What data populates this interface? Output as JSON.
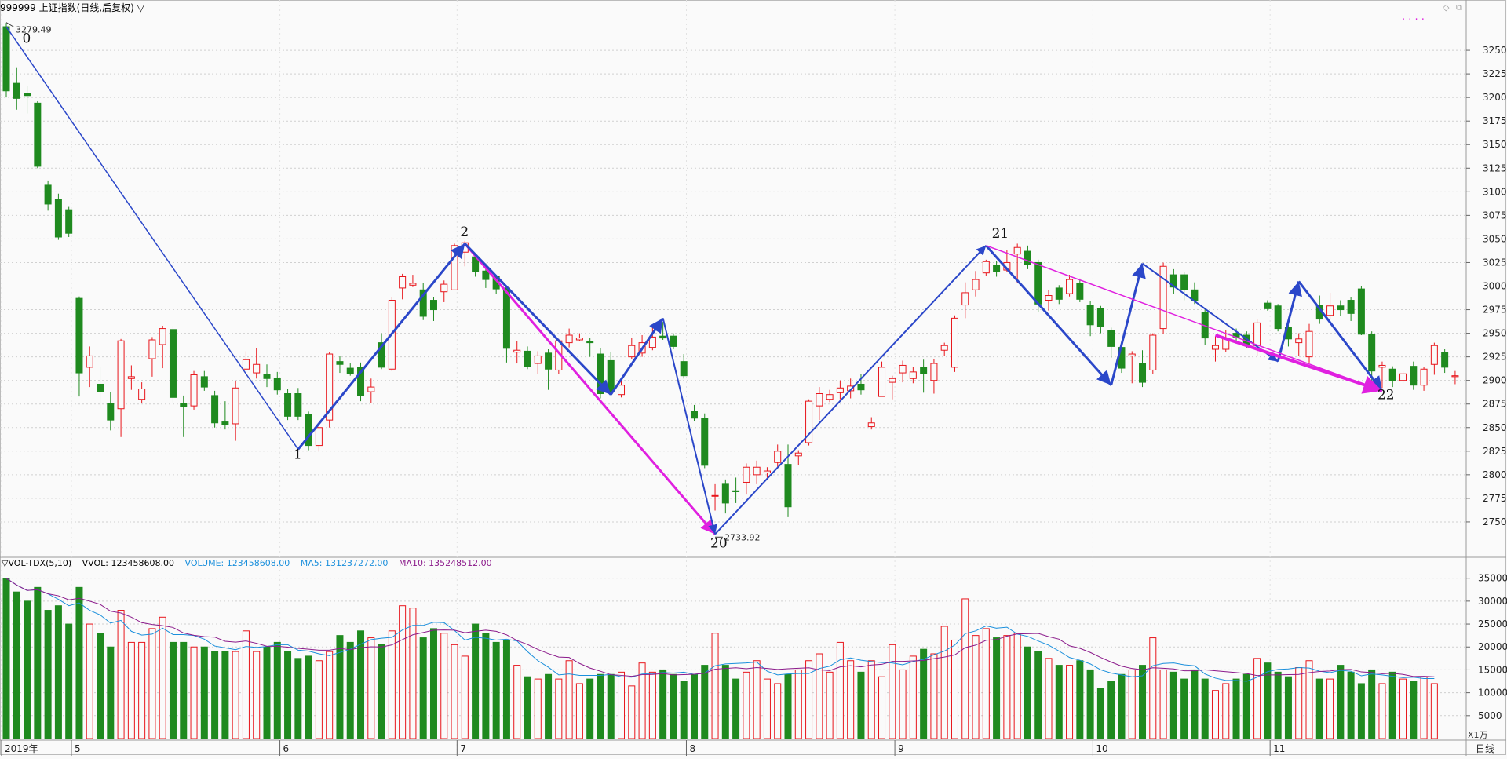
{
  "header": {
    "title": "999999 上证指数(日线,后复权) ▽",
    "legend_dots": "· · · ·"
  },
  "volume_panel": {
    "label": "▽VOL-TDX(5,10)",
    "vvol": "VVOL: 123458608.00",
    "volume": "VOLUME: 123458608.00",
    "ma5": "MA5: 131237272.00",
    "ma10": "MA10: 135248512.00",
    "unit": "X1万"
  },
  "colors": {
    "up": "#e8151b",
    "down": "#1f8a1f",
    "wave": "#2b47c9",
    "magenta": "#e020e0",
    "ma5": "#1a8fdc",
    "ma10": "#8b1a8b",
    "grid": "#d0d0d0",
    "bg": "#fafafa"
  },
  "chart_data": {
    "type": "candlestick",
    "price_axis": {
      "ticks": [
        2750,
        2775,
        2800,
        2825,
        2850,
        2875,
        2900,
        2925,
        2950,
        2975,
        3000,
        3025,
        3050,
        3075,
        3100,
        3125,
        3150,
        3175,
        3200,
        3225,
        3250
      ],
      "range": [
        2715,
        3290
      ]
    },
    "volume_axis": {
      "ticks": [
        5000,
        10000,
        15000,
        20000,
        25000,
        30000,
        35000
      ],
      "range": [
        0,
        37000
      ]
    },
    "x_axis": {
      "labels": [
        "2019年",
        "5",
        "6",
        "7",
        "8",
        "9",
        "10",
        "11"
      ],
      "label_index": [
        0,
        7,
        27,
        44,
        66,
        86,
        105,
        122
      ],
      "corner_label": "日线"
    },
    "annotations": {
      "high_label": "3279.49",
      "low_label": "2733.92",
      "high_index": 0,
      "low_index": 68
    },
    "wave_labels": [
      {
        "text": "0",
        "index": 2,
        "price": 3258
      },
      {
        "text": "1",
        "index": 28,
        "price": 2817
      },
      {
        "text": "2",
        "index": 44,
        "price": 3053
      },
      {
        "text": "20",
        "index": 68,
        "price": 2723
      },
      {
        "text": "21",
        "index": 95,
        "price": 3051
      },
      {
        "text": "22",
        "index": 132,
        "price": 2880
      }
    ],
    "wave_lines": [
      {
        "from": [
          0,
          3275
        ],
        "to": [
          28,
          2827
        ],
        "color": "wave",
        "width": 1.5
      },
      {
        "from": [
          28,
          2827
        ],
        "to": [
          44,
          3045
        ],
        "color": "wave",
        "width": 3,
        "arrow": true
      },
      {
        "from": [
          44,
          3045
        ],
        "to": [
          68,
          2737
        ],
        "color": "magenta",
        "width": 3,
        "arrow": true
      },
      {
        "from": [
          44,
          3045
        ],
        "to": [
          58,
          2885
        ],
        "color": "wave",
        "width": 3,
        "arrow": true
      },
      {
        "from": [
          58,
          2885
        ],
        "to": [
          63,
          2966
        ],
        "color": "wave",
        "width": 3,
        "arrow": true
      },
      {
        "from": [
          63,
          2966
        ],
        "to": [
          68,
          2737
        ],
        "color": "wave",
        "width": 2,
        "arrow": true
      },
      {
        "from": [
          68,
          2737
        ],
        "to": [
          94,
          3043
        ],
        "color": "wave",
        "width": 2,
        "arrow": true
      },
      {
        "from": [
          94,
          3043
        ],
        "to": [
          106,
          2895
        ],
        "color": "wave",
        "width": 3,
        "arrow": true
      },
      {
        "from": [
          106,
          2895
        ],
        "to": [
          109,
          3024
        ],
        "color": "wave",
        "width": 3,
        "arrow": true
      },
      {
        "from": [
          109,
          3024
        ],
        "to": [
          122,
          2920
        ],
        "color": "wave",
        "width": 2,
        "arrow": true
      },
      {
        "from": [
          122,
          2920
        ],
        "to": [
          124,
          3005
        ],
        "color": "wave",
        "width": 3,
        "arrow": true
      },
      {
        "from": [
          124,
          3005
        ],
        "to": [
          132,
          2889
        ],
        "color": "wave",
        "width": 3,
        "arrow": true
      },
      {
        "from": [
          94,
          3043
        ],
        "to": [
          132,
          2889
        ],
        "color": "magenta",
        "width": 1.5
      },
      {
        "from": [
          116,
          2948
        ],
        "to": [
          132,
          2889
        ],
        "color": "magenta",
        "width": 4,
        "arrow": true
      }
    ],
    "candles": [
      [
        3275,
        3207,
        3279,
        3200
      ],
      [
        3215,
        3199,
        3232,
        3187
      ],
      [
        3204,
        3202,
        3212,
        3183
      ],
      [
        3194,
        3127,
        3196,
        3125
      ],
      [
        3107,
        3087,
        3112,
        3080
      ],
      [
        3092,
        3052,
        3098,
        3049
      ],
      [
        3081,
        3056,
        3084,
        3052
      ],
      [
        2987,
        2908,
        2989,
        2883
      ],
      [
        2914,
        2926,
        2936,
        2893
      ],
      [
        2896,
        2888,
        2914,
        2870
      ],
      [
        2876,
        2858,
        2888,
        2847
      ],
      [
        2870,
        2942,
        2944,
        2840
      ],
      [
        2902,
        2904,
        2916,
        2890
      ],
      [
        2880,
        2891,
        2898,
        2876
      ],
      [
        2923,
        2943,
        2946,
        2904
      ],
      [
        2938,
        2955,
        2958,
        2913
      ],
      [
        2954,
        2882,
        2958,
        2876
      ],
      [
        2876,
        2872,
        2884,
        2840
      ],
      [
        2873,
        2906,
        2910,
        2869
      ],
      [
        2904,
        2893,
        2910,
        2889
      ],
      [
        2884,
        2855,
        2889,
        2850
      ],
      [
        2856,
        2853,
        2878,
        2848
      ],
      [
        2854,
        2892,
        2899,
        2836
      ],
      [
        2912,
        2922,
        2931,
        2910
      ],
      [
        2908,
        2917,
        2934,
        2902
      ],
      [
        2906,
        2902,
        2917,
        2893
      ],
      [
        2902,
        2890,
        2909,
        2885
      ],
      [
        2886,
        2862,
        2891,
        2858
      ],
      [
        2886,
        2862,
        2892,
        2858
      ],
      [
        2864,
        2831,
        2867,
        2826
      ],
      [
        2831,
        2850,
        2855,
        2825
      ],
      [
        2858,
        2928,
        2930,
        2850
      ],
      [
        2920,
        2917,
        2926,
        2908
      ],
      [
        2913,
        2907,
        2918,
        2905
      ],
      [
        2914,
        2884,
        2919,
        2878
      ],
      [
        2888,
        2893,
        2902,
        2876
      ],
      [
        2940,
        2914,
        2950,
        2912
      ],
      [
        2912,
        2985,
        2988,
        2910
      ],
      [
        2998,
        3010,
        3013,
        2986
      ],
      [
        3001,
        3003,
        3012,
        2999
      ],
      [
        2996,
        2968,
        3003,
        2964
      ],
      [
        2985,
        2975,
        2988,
        2963
      ],
      [
        2994,
        3002,
        3006,
        2983
      ],
      [
        2996,
        3043,
        3045,
        3019
      ],
      [
        3036,
        3046,
        3048,
        3021
      ],
      [
        3031,
        3015,
        3034,
        3010
      ],
      [
        3016,
        3007,
        3024,
        2998
      ],
      [
        3010,
        2997,
        3012,
        2992
      ],
      [
        2998,
        2934,
        3000,
        2919
      ],
      [
        2930,
        2932,
        2942,
        2918
      ],
      [
        2931,
        2915,
        2936,
        2912
      ],
      [
        2918,
        2926,
        2931,
        2907
      ],
      [
        2929,
        2912,
        2933,
        2890
      ],
      [
        2911,
        2942,
        2944,
        2907
      ],
      [
        2940,
        2948,
        2955,
        2935
      ],
      [
        2943,
        2945,
        2950,
        2942
      ],
      [
        2941,
        2940,
        2945,
        2925
      ],
      [
        2928,
        2886,
        2934,
        2881
      ],
      [
        2921,
        2888,
        2930,
        2885
      ],
      [
        2885,
        2895,
        2903,
        2882
      ],
      [
        2925,
        2937,
        2945,
        2923
      ],
      [
        2929,
        2940,
        2948,
        2925
      ],
      [
        2935,
        2946,
        2957,
        2932
      ],
      [
        2947,
        2945,
        2962,
        2943
      ],
      [
        2947,
        2936,
        2950,
        2933
      ],
      [
        2920,
        2905,
        2928,
        2902
      ],
      [
        2867,
        2860,
        2874,
        2857
      ],
      [
        2860,
        2810,
        2865,
        2807
      ],
      [
        2778,
        2778,
        2790,
        2762
      ],
      [
        2790,
        2770,
        2795,
        2759
      ],
      [
        2783,
        2782,
        2797,
        2770
      ],
      [
        2792,
        2808,
        2812,
        2779
      ],
      [
        2800,
        2808,
        2815,
        2790
      ],
      [
        2802,
        2804,
        2808,
        2797
      ],
      [
        2813,
        2825,
        2832,
        2808
      ],
      [
        2811,
        2766,
        2832,
        2755
      ],
      [
        2820,
        2823,
        2826,
        2810
      ],
      [
        2834,
        2878,
        2880,
        2831
      ],
      [
        2873,
        2886,
        2893,
        2858
      ],
      [
        2880,
        2885,
        2890,
        2877
      ],
      [
        2887,
        2892,
        2900,
        2880
      ],
      [
        2889,
        2894,
        2902,
        2881
      ],
      [
        2896,
        2890,
        2907,
        2885
      ],
      [
        2851,
        2855,
        2861,
        2848
      ],
      [
        2883,
        2914,
        2920,
        2883
      ],
      [
        2898,
        2902,
        2905,
        2880
      ],
      [
        2908,
        2916,
        2921,
        2898
      ],
      [
        2902,
        2909,
        2914,
        2897
      ],
      [
        2914,
        2907,
        2922,
        2887
      ],
      [
        2900,
        2918,
        2923,
        2886
      ],
      [
        2932,
        2937,
        2940,
        2926
      ],
      [
        2914,
        2966,
        2969,
        2909
      ],
      [
        2980,
        2993,
        3004,
        2966
      ],
      [
        2996,
        3007,
        3016,
        2989
      ],
      [
        3014,
        3026,
        3028,
        3011
      ],
      [
        3022,
        3015,
        3027,
        3010
      ],
      [
        3017,
        3025,
        3038,
        3015
      ],
      [
        3034,
        3041,
        3045,
        3003
      ],
      [
        3037,
        3023,
        3043,
        3018
      ],
      [
        3025,
        2981,
        3028,
        2973
      ],
      [
        2985,
        2990,
        2996,
        2974
      ],
      [
        2998,
        2986,
        3001,
        2981
      ],
      [
        2992,
        3007,
        3012,
        2989
      ],
      [
        3003,
        2986,
        3008,
        2983
      ],
      [
        2980,
        2959,
        2984,
        2947
      ],
      [
        2976,
        2957,
        2979,
        2950
      ],
      [
        2953,
        2936,
        2956,
        2924
      ],
      [
        2935,
        2913,
        2942,
        2908
      ],
      [
        2926,
        2928,
        2931,
        2897
      ],
      [
        2918,
        2898,
        2932,
        2893
      ],
      [
        2911,
        2948,
        2950,
        2907
      ],
      [
        2955,
        3021,
        3025,
        2949
      ],
      [
        3012,
        2999,
        3018,
        2992
      ],
      [
        3012,
        2996,
        3015,
        2985
      ],
      [
        2996,
        2985,
        3004,
        2981
      ],
      [
        2972,
        2945,
        2977,
        2938
      ],
      [
        2933,
        2937,
        2947,
        2920
      ],
      [
        2933,
        2945,
        2953,
        2930
      ],
      [
        2950,
        2946,
        2955,
        2939
      ],
      [
        2948,
        2938,
        2952,
        2934
      ],
      [
        2937,
        2961,
        2965,
        2926
      ],
      [
        2982,
        2976,
        2985,
        2974
      ],
      [
        2979,
        2955,
        2981,
        2952
      ],
      [
        2956,
        2944,
        2959,
        2936
      ],
      [
        2940,
        2944,
        2950,
        2926
      ],
      [
        2925,
        2952,
        2960,
        2919
      ],
      [
        2980,
        2965,
        2990,
        2960
      ],
      [
        2969,
        2979,
        2993,
        2965
      ],
      [
        2979,
        2975,
        2985,
        2968
      ],
      [
        2985,
        2971,
        2988,
        2963
      ],
      [
        2997,
        2949,
        3000,
        2948
      ],
      [
        2949,
        2910,
        2952,
        2895
      ],
      [
        2914,
        2916,
        2920,
        2892
      ],
      [
        2912,
        2900,
        2915,
        2893
      ],
      [
        2900,
        2907,
        2910,
        2897
      ],
      [
        2915,
        2895,
        2920,
        2890
      ],
      [
        2895,
        2912,
        2914,
        2889
      ],
      [
        2917,
        2937,
        2940,
        2906
      ],
      [
        2930,
        2914,
        2933,
        2908
      ],
      [
        2904,
        2905,
        2910,
        2896
      ]
    ],
    "volume": [
      35000,
      32000,
      30000,
      33000,
      28000,
      29000,
      25000,
      33000,
      25000,
      23000,
      20000,
      28000,
      21000,
      21000,
      24000,
      26500,
      21000,
      21000,
      20000,
      20000,
      19000,
      19000,
      19000,
      23500,
      19000,
      20000,
      21000,
      19000,
      17500,
      18000,
      17000,
      19000,
      22500,
      21000,
      23500,
      22000,
      20500,
      23500,
      29000,
      28500,
      22000,
      24000,
      23000,
      20500,
      18000,
      25000,
      23000,
      21000,
      21500,
      16000,
      13500,
      13000,
      14000,
      13000,
      17000,
      12000,
      13000,
      14000,
      14000,
      14500,
      11500,
      16500,
      14500,
      15000,
      14000,
      12500,
      14000,
      16000,
      23000,
      16000,
      13000,
      14500,
      17000,
      13000,
      12000,
      14000,
      15000,
      17000,
      18500,
      14500,
      21000,
      17000,
      14500,
      17000,
      13500,
      20500,
      15000,
      18000,
      19500,
      18500,
      24500,
      21500,
      30500,
      22500,
      24000,
      22000,
      22500,
      23000,
      20000,
      19000,
      17500,
      16000,
      16000,
      17000,
      15000,
      11000,
      12500,
      14000,
      15000,
      16000,
      22000,
      15000,
      14500,
      13000,
      15000,
      13000,
      10500,
      12000,
      13000,
      14000,
      17500,
      16500,
      14500,
      13500,
      15500,
      17000,
      13000,
      13000,
      16000,
      14500,
      12000,
      15000,
      12000,
      14500,
      13000,
      12500,
      13500,
      12000
    ]
  }
}
